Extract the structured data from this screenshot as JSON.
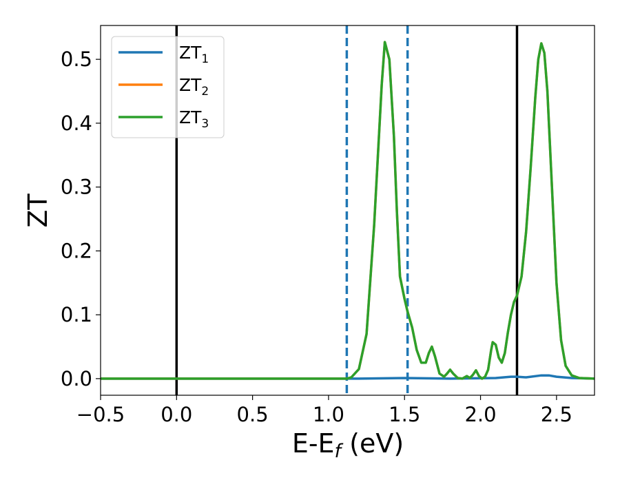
{
  "chart_data": {
    "type": "line",
    "xlabel": "E-E",
    "xlabel_sub": "f",
    "xlabel_unit": " (eV)",
    "ylabel": "ZT",
    "xlim": [
      -0.5,
      2.75
    ],
    "ylim": [
      -0.026,
      0.553
    ],
    "xticks": [
      -0.5,
      0.0,
      0.5,
      1.0,
      1.5,
      2.0,
      2.5
    ],
    "xtick_labels": [
      "−0.5",
      "0.0",
      "0.5",
      "1.0",
      "1.5",
      "2.0",
      "2.5"
    ],
    "yticks": [
      0.0,
      0.1,
      0.2,
      0.3,
      0.4,
      0.5
    ],
    "ytick_labels": [
      "0.0",
      "0.1",
      "0.2",
      "0.3",
      "0.4",
      "0.5"
    ],
    "grid": false,
    "legend_position": "top-left",
    "vlines": [
      {
        "x": 0.0,
        "style": "solid",
        "color": "#000000"
      },
      {
        "x": 2.24,
        "style": "solid",
        "color": "#000000"
      },
      {
        "x": 1.12,
        "style": "dashed",
        "color": "#1f77b4"
      },
      {
        "x": 1.52,
        "style": "dashed",
        "color": "#1f77b4"
      }
    ],
    "series": [
      {
        "name": "ZT",
        "subscript": "1",
        "color": "#1f77b4",
        "x": [
          -0.5,
          1.0,
          1.2,
          1.5,
          1.8,
          2.1,
          2.2,
          2.24,
          2.3,
          2.4,
          2.45,
          2.5,
          2.6,
          2.75
        ],
        "y": [
          0.0,
          0.0,
          0.0,
          0.001,
          0.0,
          0.001,
          0.003,
          0.003,
          0.002,
          0.005,
          0.005,
          0.003,
          0.001,
          0.0
        ]
      },
      {
        "name": "ZT",
        "subscript": "2",
        "color": "#ff7f0e",
        "x": [
          -0.5,
          1.12,
          1.15,
          1.2,
          1.25,
          1.3,
          1.35,
          1.37,
          1.4,
          1.43,
          1.45,
          1.47,
          1.5,
          1.52,
          1.55,
          1.58,
          1.61,
          1.64,
          1.66,
          1.68,
          1.7,
          1.73,
          1.76,
          1.78,
          1.8,
          1.82,
          1.85,
          1.88,
          1.91,
          1.93,
          1.95,
          1.97,
          1.99,
          2.01,
          2.03,
          2.05,
          2.07,
          2.08,
          2.1,
          2.12,
          2.14,
          2.16,
          2.18,
          2.2,
          2.22,
          2.24,
          2.27,
          2.3,
          2.33,
          2.36,
          2.38,
          2.4,
          2.42,
          2.44,
          2.47,
          2.5,
          2.53,
          2.56,
          2.6,
          2.65,
          2.75
        ],
        "y": [
          0.0,
          0.0,
          0.002,
          0.015,
          0.07,
          0.24,
          0.46,
          0.527,
          0.5,
          0.38,
          0.26,
          0.16,
          0.125,
          0.105,
          0.08,
          0.045,
          0.025,
          0.025,
          0.04,
          0.05,
          0.035,
          0.008,
          0.003,
          0.008,
          0.014,
          0.008,
          0.001,
          0.0,
          0.004,
          0.001,
          0.006,
          0.013,
          0.004,
          0.0,
          0.003,
          0.014,
          0.045,
          0.057,
          0.053,
          0.033,
          0.025,
          0.04,
          0.072,
          0.1,
          0.12,
          0.13,
          0.16,
          0.23,
          0.33,
          0.44,
          0.5,
          0.525,
          0.51,
          0.45,
          0.3,
          0.15,
          0.06,
          0.02,
          0.005,
          0.001,
          0.0
        ]
      },
      {
        "name": "ZT",
        "subscript": "3",
        "color": "#2ca02c",
        "x": [
          -0.5,
          1.12,
          1.15,
          1.2,
          1.25,
          1.3,
          1.35,
          1.37,
          1.4,
          1.43,
          1.45,
          1.47,
          1.5,
          1.52,
          1.55,
          1.58,
          1.61,
          1.64,
          1.66,
          1.68,
          1.7,
          1.73,
          1.76,
          1.78,
          1.8,
          1.82,
          1.85,
          1.88,
          1.91,
          1.93,
          1.95,
          1.97,
          1.99,
          2.01,
          2.03,
          2.05,
          2.07,
          2.08,
          2.1,
          2.12,
          2.14,
          2.16,
          2.18,
          2.2,
          2.22,
          2.24,
          2.27,
          2.3,
          2.33,
          2.36,
          2.38,
          2.4,
          2.42,
          2.44,
          2.47,
          2.5,
          2.53,
          2.56,
          2.6,
          2.65,
          2.75
        ],
        "y": [
          0.0,
          0.0,
          0.002,
          0.015,
          0.07,
          0.24,
          0.46,
          0.527,
          0.5,
          0.38,
          0.26,
          0.16,
          0.125,
          0.105,
          0.08,
          0.045,
          0.025,
          0.025,
          0.04,
          0.05,
          0.035,
          0.008,
          0.003,
          0.008,
          0.014,
          0.008,
          0.001,
          0.0,
          0.004,
          0.001,
          0.006,
          0.013,
          0.004,
          0.0,
          0.003,
          0.014,
          0.045,
          0.057,
          0.053,
          0.033,
          0.025,
          0.04,
          0.072,
          0.1,
          0.12,
          0.13,
          0.16,
          0.23,
          0.33,
          0.44,
          0.5,
          0.525,
          0.51,
          0.45,
          0.3,
          0.15,
          0.06,
          0.02,
          0.005,
          0.001,
          0.0
        ]
      }
    ]
  }
}
